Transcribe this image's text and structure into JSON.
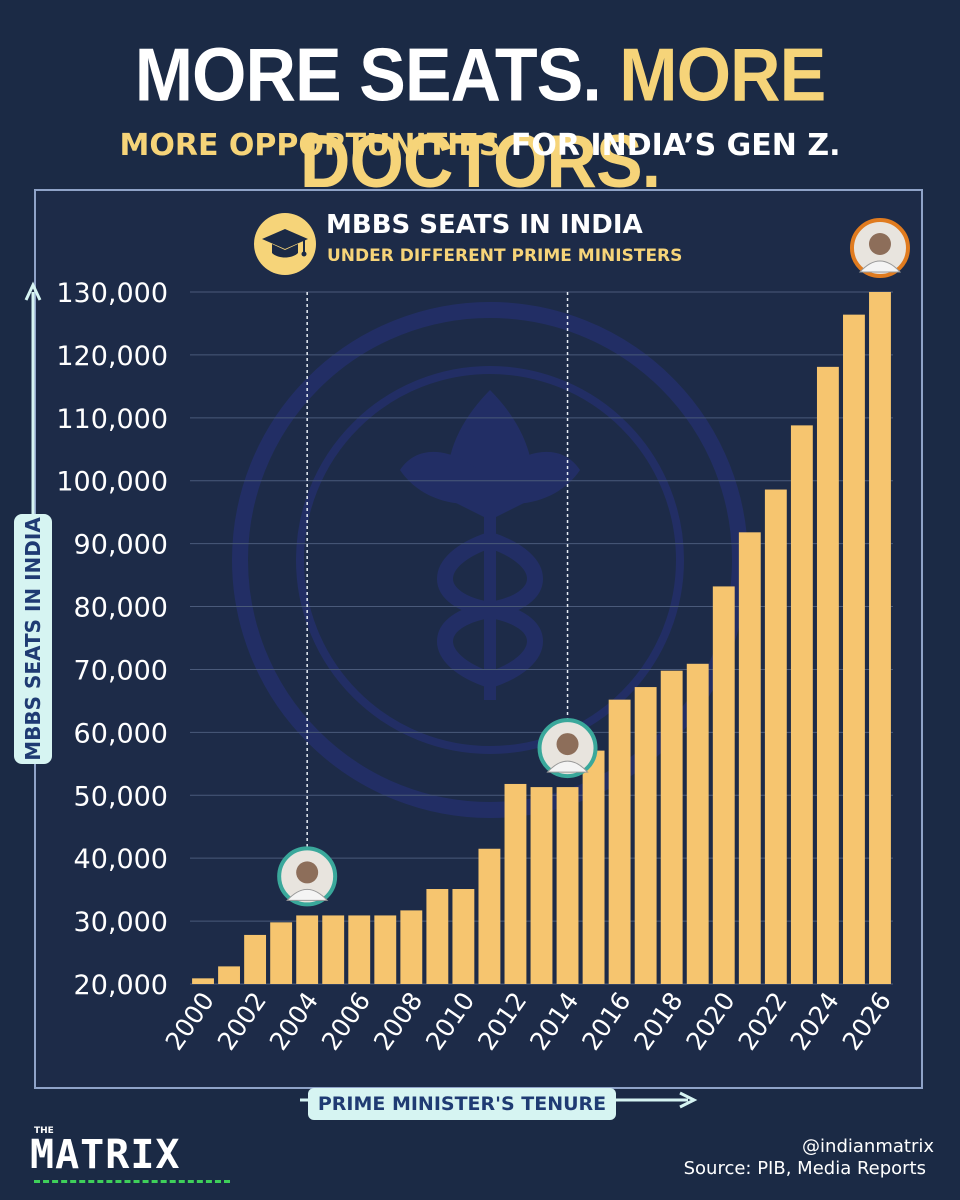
{
  "header": {
    "headline_part1": "MORE SEATS.",
    "headline_part2": "MORE DOCTORS.",
    "sub_part1": "MORE OPPORTUNITIES",
    "sub_part2": "FOR INDIA’S GEN Z."
  },
  "colors": {
    "background": "#1b2a45",
    "bar": "#f6c56f",
    "accent_yellow": "#f6d479",
    "grid": "#4a5a7a",
    "label_box": "#d6f4f2",
    "brand_green": "#3ecf5a"
  },
  "icons": {
    "legend": "graduation-cap-icon",
    "watermark": "aiims-emblem-watermark",
    "pm_markers": [
      "pm-portrait-2004",
      "pm-portrait-2014",
      "pm-portrait-2026"
    ]
  },
  "footer": {
    "handle": "@indianmatrix",
    "source": "Source: PIB, Media Reports",
    "brand_small": "THE",
    "brand": "MATRIX"
  },
  "chart_data": {
    "type": "bar",
    "title": "MBBS SEATS IN INDIA",
    "subtitle": "UNDER DIFFERENT PRIME MINISTERS",
    "ylabel": "MBBS SEATS IN INDIA",
    "xlabel": "PRIME MINISTER'S TENURE",
    "ylim": [
      20000,
      130000
    ],
    "y_ticks": [
      20000,
      30000,
      40000,
      50000,
      60000,
      70000,
      80000,
      90000,
      100000,
      110000,
      120000,
      130000
    ],
    "y_tick_labels": [
      "20,000",
      "30,000",
      "40,000",
      "50,000",
      "60,000",
      "70,000",
      "80,000",
      "90,000",
      "100,000",
      "110,000",
      "120,000",
      "130,000"
    ],
    "categories": [
      "2000",
      "2001",
      "2002",
      "2003",
      "2004",
      "2005",
      "2006",
      "2007",
      "2008",
      "2009",
      "2010",
      "2011",
      "2012",
      "2013",
      "2014",
      "2015",
      "2016",
      "2017",
      "2018",
      "2019",
      "2020",
      "2021",
      "2022",
      "2023",
      "2024",
      "2025",
      "2026"
    ],
    "x_tick_labels": [
      "2000",
      "2002",
      "2004",
      "2006",
      "2008",
      "2010",
      "2012",
      "2014",
      "2016",
      "2018",
      "2020",
      "2022",
      "2024",
      "2026"
    ],
    "values": [
      20900,
      22800,
      27800,
      29800,
      30900,
      30900,
      30900,
      30900,
      31700,
      35100,
      35100,
      41500,
      51800,
      51300,
      51300,
      57100,
      65200,
      67200,
      69800,
      70900,
      83200,
      91800,
      98600,
      108800,
      118100,
      126400,
      130000
    ],
    "pm_marker_years": [
      "2004",
      "2014",
      "2026"
    ],
    "grid": true
  }
}
